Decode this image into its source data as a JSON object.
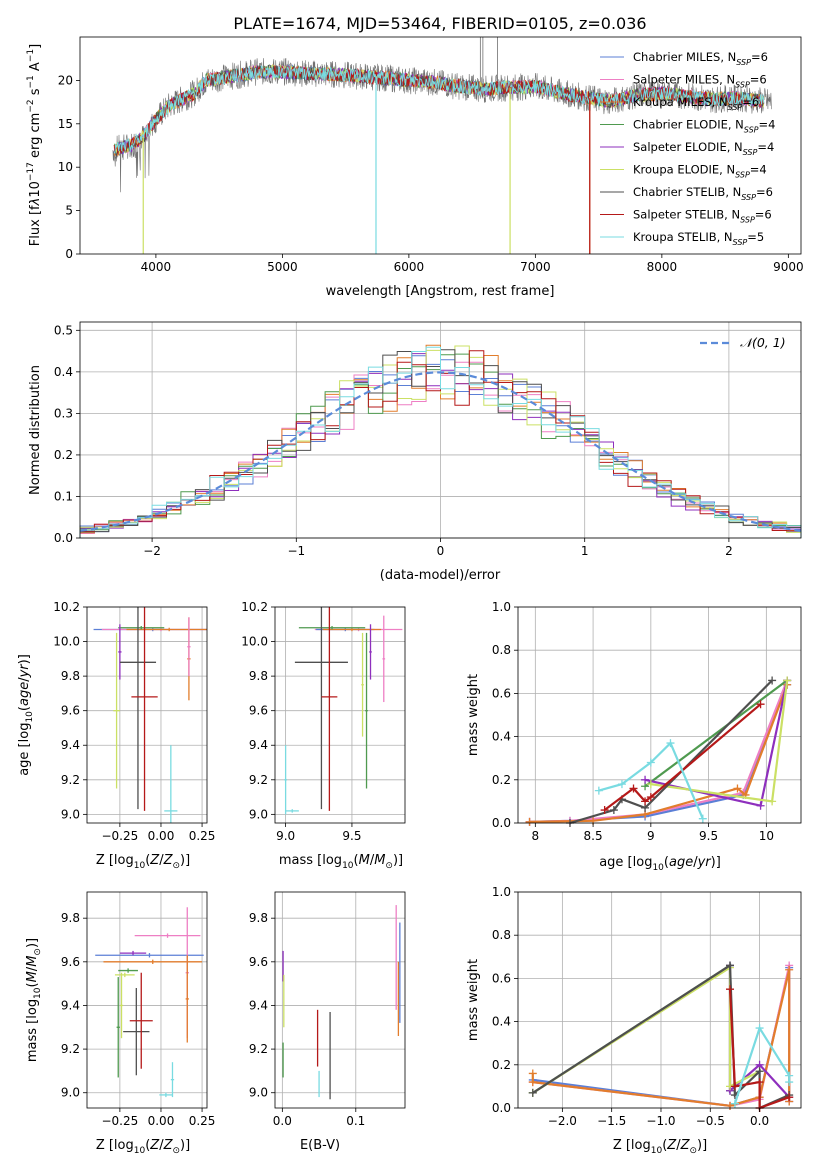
{
  "colors": {
    "chabrier_miles": "#5b7fd6",
    "salpeter_miles": "#ee7fc4",
    "kroupa_miles": "#e27d2c",
    "chabrier_elodie": "#4f9a4f",
    "salpeter_elodie": "#8e2fbd",
    "kroupa_elodie": "#cbe064",
    "chabrier_stelib": "#4f4f4f",
    "salpeter_stelib": "#b51919",
    "kroupa_stelib": "#79dbe1"
  },
  "chart_data": [
    {
      "id": "spectrum",
      "type": "line",
      "title": "PLATE=1674, MJD=53464, FIBERID=0105, z=0.036",
      "xlabel": "wavelength [Angstrom, rest frame]",
      "ylabel": "Flux [fλ10−17 erg cm−2 s−1 A−1]",
      "xlim": [
        3400,
        9100
      ],
      "ylim": [
        0,
        25
      ],
      "xticks": [
        4000,
        5000,
        6000,
        7000,
        8000,
        9000
      ],
      "yticks": [
        0,
        5,
        10,
        15,
        20
      ],
      "legend_position": "top-right",
      "legend": [
        {
          "key": "chabrier_miles",
          "text": "Chabrier MILES, N",
          "sub": "SSP",
          "suffix": "=6"
        },
        {
          "key": "salpeter_miles",
          "text": "Salpeter MILES, N",
          "sub": "SSP",
          "suffix": "=6"
        },
        {
          "key": "kroupa_miles",
          "text": "Kroupa MILES, N",
          "sub": "SSP",
          "suffix": "=6"
        },
        {
          "key": "chabrier_elodie",
          "text": "Chabrier ELODIE, N",
          "sub": "SSP",
          "suffix": "=4"
        },
        {
          "key": "salpeter_elodie",
          "text": "Salpeter ELODIE, N",
          "sub": "SSP",
          "suffix": "=4"
        },
        {
          "key": "kroupa_elodie",
          "text": "Kroupa ELODIE, N",
          "sub": "SSP",
          "suffix": "=4"
        },
        {
          "key": "chabrier_stelib",
          "text": "Chabrier STELIB, N",
          "sub": "SSP",
          "suffix": "=6"
        },
        {
          "key": "salpeter_stelib",
          "text": "Salpeter STELIB, N",
          "sub": "SSP",
          "suffix": "=6"
        },
        {
          "key": "kroupa_stelib",
          "text": "Kroupa STELIB, N",
          "sub": "SSP",
          "suffix": "=5"
        }
      ],
      "data_color": "#707070",
      "continuum": {
        "x": [
          3660,
          3800,
          3900,
          4000,
          4100,
          4200,
          4300,
          4400,
          4600,
          4800,
          5000,
          5200,
          5400,
          5600,
          5800,
          6000,
          6200,
          6400,
          6600,
          6800,
          7000,
          7200,
          7400,
          7600,
          7800,
          8000,
          8200,
          8400,
          8600,
          8800,
          8870
        ],
        "y": [
          12.0,
          12.5,
          13.5,
          15.5,
          17.0,
          17.8,
          18.5,
          20.0,
          20.5,
          21.0,
          21.0,
          20.8,
          20.7,
          20.5,
          20.3,
          20.0,
          19.8,
          19.3,
          19.0,
          19.2,
          19.3,
          18.6,
          18.0,
          17.6,
          18.3,
          18.5,
          18.2,
          17.8,
          18.0,
          17.6,
          17.5
        ]
      },
      "model_dropouts": [
        {
          "key": "kroupa_elodie",
          "x": 3900
        },
        {
          "key": "kroupa_stelib",
          "x": 5740
        },
        {
          "key": "kroupa_elodie",
          "x": 6800
        },
        {
          "key": "kroupa_miles",
          "x": 7430
        },
        {
          "key": "salpeter_stelib",
          "x": 7430
        }
      ]
    },
    {
      "id": "residuals",
      "type": "histogram",
      "xlabel": "(data-model)/error",
      "ylabel": "Normed distribution",
      "xlim": [
        -2.5,
        2.5
      ],
      "ylim": [
        0,
        0.52
      ],
      "xticks": [
        -2,
        -1,
        0,
        1,
        2
      ],
      "xticklabels": [
        "−2",
        "−1",
        "0",
        "1",
        "2"
      ],
      "yticks": [
        0.0,
        0.1,
        0.2,
        0.3,
        0.4,
        0.5
      ],
      "legend_position": "top-right",
      "gaussian_label": "𝒩(0, 1)",
      "gaussian_color": "#5b8bd9",
      "bin_edges": [
        -2.5,
        -2.4,
        -2.3,
        -2.2,
        -2.1,
        -2.0,
        -1.9,
        -1.8,
        -1.7,
        -1.6,
        -1.5,
        -1.4,
        -1.3,
        -1.2,
        -1.1,
        -1.0,
        -0.9,
        -0.8,
        -0.7,
        -0.6,
        -0.5,
        -0.4,
        -0.3,
        -0.2,
        -0.1,
        0.0,
        0.1,
        0.2,
        0.3,
        0.4,
        0.5,
        0.6,
        0.7,
        0.8,
        0.9,
        1.0,
        1.1,
        1.2,
        1.3,
        1.4,
        1.5,
        1.6,
        1.7,
        1.8,
        1.9,
        2.0,
        2.1,
        2.2,
        2.3,
        2.4,
        2.5
      ],
      "spread": 0.045
    },
    {
      "id": "age_vs_z",
      "type": "scatter",
      "xlabel": "Z [log10(Z/Z⊙)]",
      "ylabel": "age  [log10(age/yr)]",
      "xlim": [
        -0.45,
        0.28
      ],
      "ylim": [
        8.95,
        10.2
      ],
      "xticks": [
        -0.25,
        0.0,
        0.25
      ],
      "xticklabels": [
        "−0.25",
        "0.00",
        "0.25"
      ],
      "yticks": [
        9.0,
        9.2,
        9.4,
        9.6,
        9.8,
        10.0,
        10.2
      ],
      "points": [
        {
          "key": "chabrier_miles",
          "x": -0.05,
          "xerr": 0.36,
          "y": 10.07,
          "yerr": 0.01
        },
        {
          "key": "salpeter_miles",
          "x": 0.0,
          "xerr": 0.36,
          "y": 10.07,
          "yerr": 0.01
        },
        {
          "key": "kroupa_miles",
          "x": 0.05,
          "xerr": 0.26,
          "y": 10.07,
          "yerr": 0.01
        },
        {
          "key": "chabrier_elodie",
          "x": -0.12,
          "xerr": 0.14,
          "y": 10.08,
          "yerr": 0.01
        },
        {
          "key": "salpeter_elodie",
          "x": -0.25,
          "xerr": 0.01,
          "y": 9.94,
          "yerr": 0.16
        },
        {
          "key": "kroupa_elodie",
          "x": -0.27,
          "xerr": 0.02,
          "y": 9.6,
          "yerr": 0.45
        },
        {
          "key": "chabrier_stelib",
          "x": -0.14,
          "xerr": 0.11,
          "y": 9.88,
          "yerr": 0.85
        },
        {
          "key": "salpeter_stelib",
          "x": -0.1,
          "xerr": 0.08,
          "y": 9.68,
          "yerr": 0.66
        },
        {
          "key": "kroupa_stelib",
          "x": 0.06,
          "xerr": 0.04,
          "y": 9.02,
          "yerr": 0.38
        },
        {
          "key": "kroupa_miles",
          "x": 0.17,
          "xerr": 0.01,
          "y": 9.9,
          "yerr": 0.24
        },
        {
          "key": "salpeter_miles",
          "x": 0.17,
          "xerr": 0.01,
          "y": 9.97,
          "yerr": 0.17
        }
      ]
    },
    {
      "id": "age_vs_mass",
      "type": "scatter",
      "xlabel": "mass [log10(M/M⊙)]",
      "xlim": [
        8.92,
        9.9
      ],
      "ylim": [
        8.95,
        10.2
      ],
      "xticks": [
        9.0,
        9.5
      ],
      "xticklabels": [
        "9.0",
        "9.5"
      ],
      "yticks": [
        9.0,
        9.2,
        9.4,
        9.6,
        9.8,
        10.0,
        10.2
      ],
      "points": [
        {
          "key": "salpeter_miles",
          "x": 9.55,
          "xerr": 0.33,
          "y": 10.07,
          "yerr": 0.01
        },
        {
          "key": "chabrier_miles",
          "x": 9.45,
          "xerr": 0.22,
          "y": 10.07,
          "yerr": 0.01
        },
        {
          "key": "kroupa_miles",
          "x": 9.5,
          "xerr": 0.22,
          "y": 10.07,
          "yerr": 0.01
        },
        {
          "key": "chabrier_elodie",
          "x": 9.35,
          "xerr": 0.25,
          "y": 10.08,
          "yerr": 0.01
        },
        {
          "key": "salpeter_elodie",
          "x": 9.64,
          "xerr": 0.01,
          "y": 9.94,
          "yerr": 0.16
        },
        {
          "key": "kroupa_elodie",
          "x": 9.58,
          "xerr": 0.01,
          "y": 9.75,
          "yerr": 0.3
        },
        {
          "key": "chabrier_stelib",
          "x": 9.27,
          "xerr": 0.2,
          "y": 9.88,
          "yerr": 0.85
        },
        {
          "key": "salpeter_stelib",
          "x": 9.33,
          "xerr": 0.06,
          "y": 9.68,
          "yerr": 0.66
        },
        {
          "key": "kroupa_stelib",
          "x": 9.0,
          "xerr": 0.01,
          "y": 9.2,
          "yerr": 0.2
        },
        {
          "key": "kroupa_stelib",
          "x": 9.05,
          "xerr": 0.05,
          "y": 9.02,
          "yerr": 0.01
        },
        {
          "key": "salpeter_miles",
          "x": 9.74,
          "xerr": 0.01,
          "y": 9.9,
          "yerr": 0.25
        },
        {
          "key": "chabrier_elodie",
          "x": 9.61,
          "xerr": 0.01,
          "y": 9.6,
          "yerr": 0.45
        }
      ]
    },
    {
      "id": "mass_weight_vs_age",
      "type": "line",
      "xlabel": "age  [log10(age/yr)]",
      "ylabel": "mass weight",
      "xlim": [
        7.85,
        10.3
      ],
      "ylim": [
        0,
        1
      ],
      "xticks": [
        8.0,
        8.5,
        9.0,
        9.5,
        10.0
      ],
      "yticks": [
        0.0,
        0.2,
        0.4,
        0.6,
        0.8,
        1.0
      ],
      "series": [
        {
          "key": "chabrier_miles",
          "x": [
            7.95,
            8.3,
            8.95,
            9.8,
            10.18
          ],
          "y": [
            0.005,
            0.01,
            0.03,
            0.13,
            0.64
          ]
        },
        {
          "key": "salpeter_miles",
          "x": [
            7.95,
            8.3,
            8.95,
            9.8,
            10.18
          ],
          "y": [
            0.005,
            0.01,
            0.04,
            0.14,
            0.66
          ]
        },
        {
          "key": "kroupa_miles",
          "x": [
            7.95,
            8.5,
            8.95,
            9.75,
            9.82,
            10.18
          ],
          "y": [
            0.005,
            0.01,
            0.04,
            0.16,
            0.13,
            0.64
          ]
        },
        {
          "key": "chabrier_elodie",
          "x": [
            8.95,
            10.18
          ],
          "y": [
            0.17,
            0.66
          ]
        },
        {
          "key": "salpeter_elodie",
          "x": [
            8.95,
            9.95,
            10.18
          ],
          "y": [
            0.2,
            0.08,
            0.66
          ]
        },
        {
          "key": "kroupa_elodie",
          "x": [
            9.0,
            10.05,
            10.18
          ],
          "y": [
            0.18,
            0.1,
            0.66
          ]
        },
        {
          "key": "chabrier_stelib",
          "x": [
            8.3,
            8.68,
            8.75,
            8.95,
            10.05
          ],
          "y": [
            0.0,
            0.06,
            0.11,
            0.07,
            0.66
          ]
        },
        {
          "key": "salpeter_stelib",
          "x": [
            8.6,
            8.85,
            8.95,
            9.0,
            9.95
          ],
          "y": [
            0.06,
            0.16,
            0.1,
            0.12,
            0.55
          ]
        },
        {
          "key": "kroupa_stelib",
          "x": [
            8.55,
            8.75,
            9.0,
            9.17,
            9.45
          ],
          "y": [
            0.15,
            0.18,
            0.28,
            0.37,
            0.02
          ]
        }
      ]
    },
    {
      "id": "mass_vs_z",
      "type": "scatter",
      "xlabel": "Z [log10(Z/Z⊙)]",
      "ylabel": "mass [log10(M/M⊙)]",
      "xlim": [
        -0.45,
        0.28
      ],
      "ylim": [
        8.93,
        9.92
      ],
      "xticks": [
        -0.25,
        0.0,
        0.25
      ],
      "xticklabels": [
        "−0.25",
        "0.00",
        "0.25"
      ],
      "yticks": [
        9.0,
        9.2,
        9.4,
        9.6,
        9.8
      ],
      "points": [
        {
          "key": "chabrier_miles",
          "x": -0.07,
          "xerr": 0.33,
          "y": 9.63,
          "yerr": 0.01
        },
        {
          "key": "salpeter_miles",
          "x": 0.04,
          "xerr": 0.2,
          "y": 9.72,
          "yerr": 0.01
        },
        {
          "key": "kroupa_miles",
          "x": -0.05,
          "xerr": 0.3,
          "y": 9.6,
          "yerr": 0.01
        },
        {
          "key": "chabrier_elodie",
          "x": -0.2,
          "xerr": 0.06,
          "y": 9.56,
          "yerr": 0.01
        },
        {
          "key": "salpeter_elodie",
          "x": -0.17,
          "xerr": 0.08,
          "y": 9.64,
          "yerr": 0.01
        },
        {
          "key": "kroupa_elodie",
          "x": -0.22,
          "xerr": 0.06,
          "y": 9.54,
          "yerr": 0.01
        },
        {
          "key": "chabrier_stelib",
          "x": -0.15,
          "xerr": 0.08,
          "y": 9.28,
          "yerr": 0.2
        },
        {
          "key": "salpeter_stelib",
          "x": -0.12,
          "xerr": 0.07,
          "y": 9.33,
          "yerr": 0.22
        },
        {
          "key": "kroupa_stelib",
          "x": 0.03,
          "xerr": 0.04,
          "y": 8.99,
          "yerr": 0.01
        },
        {
          "key": "kroupa_stelib",
          "x": 0.07,
          "xerr": 0.01,
          "y": 9.06,
          "yerr": 0.08
        },
        {
          "key": "chabrier_elodie",
          "x": -0.26,
          "xerr": 0.01,
          "y": 9.3,
          "yerr": 0.23
        },
        {
          "key": "kroupa_elodie",
          "x": -0.24,
          "xerr": 0.01,
          "y": 9.4,
          "yerr": 0.15
        },
        {
          "key": "salpeter_miles",
          "x": 0.16,
          "xerr": 0.01,
          "y": 9.55,
          "yerr": 0.3
        },
        {
          "key": "kroupa_miles",
          "x": 0.16,
          "xerr": 0.01,
          "y": 9.43,
          "yerr": 0.2
        }
      ]
    },
    {
      "id": "mass_vs_ebv",
      "type": "scatter",
      "xlabel": "E(B-V)",
      "xlim": [
        -0.01,
        0.167
      ],
      "ylim": [
        8.93,
        9.92
      ],
      "xticks": [
        0.0,
        0.1
      ],
      "xticklabels": [
        "0.0",
        "0.1"
      ],
      "yticks": [
        9.0,
        9.2,
        9.4,
        9.6,
        9.8
      ],
      "points": [
        {
          "key": "salpeter_elodie",
          "x": 0.001,
          "y": 9.58,
          "yerr": 0.07
        },
        {
          "key": "kroupa_elodie",
          "x": 0.002,
          "y": 9.42,
          "yerr": 0.12
        },
        {
          "key": "chabrier_elodie",
          "x": 0.001,
          "y": 9.15,
          "yerr": 0.08
        },
        {
          "key": "salpeter_stelib",
          "x": 0.048,
          "y": 9.25,
          "yerr": 0.13
        },
        {
          "key": "kroupa_stelib",
          "x": 0.05,
          "y": 9.04,
          "yerr": 0.06
        },
        {
          "key": "chabrier_stelib",
          "x": 0.065,
          "y": 9.17,
          "yerr": 0.2
        },
        {
          "key": "salpeter_miles",
          "x": 0.155,
          "y": 9.62,
          "yerr": 0.24
        },
        {
          "key": "chabrier_miles",
          "x": 0.16,
          "y": 9.55,
          "yerr": 0.23
        },
        {
          "key": "kroupa_miles",
          "x": 0.158,
          "y": 9.43,
          "yerr": 0.17
        }
      ]
    },
    {
      "id": "mass_weight_vs_z",
      "type": "line",
      "xlabel": "Z [log10(Z/Z⊙)]",
      "ylabel": "mass weight",
      "xlim": [
        -2.45,
        0.42
      ],
      "ylim": [
        0,
        1
      ],
      "xticks": [
        -2.0,
        -1.5,
        -1.0,
        -0.5,
        0.0
      ],
      "xticklabels": [
        "−2.0",
        "−1.5",
        "−1.0",
        "−0.5",
        "0.0"
      ],
      "yticks": [
        0.0,
        0.2,
        0.4,
        0.6,
        0.8,
        1.0
      ],
      "series": [
        {
          "key": "chabrier_miles",
          "x": [
            -2.3,
            -0.3,
            0.0,
            0.3,
            0.3
          ],
          "y": [
            0.13,
            0.01,
            0.05,
            0.65,
            0.03
          ]
        },
        {
          "key": "salpeter_miles",
          "x": [
            -2.3,
            -0.3,
            0.0,
            0.3,
            0.3
          ],
          "y": [
            0.12,
            0.01,
            0.04,
            0.66,
            0.03
          ]
        },
        {
          "key": "kroupa_miles",
          "x": [
            -2.3,
            -2.3,
            -0.3,
            0.0,
            0.3,
            0.3
          ],
          "y": [
            0.16,
            0.12,
            0.01,
            0.05,
            0.64,
            0.03
          ]
        },
        {
          "key": "chabrier_elodie",
          "x": [
            -2.3,
            -0.3,
            -0.3
          ],
          "y": [
            0.07,
            0.66,
            0.08
          ]
        },
        {
          "key": "salpeter_elodie",
          "x": [
            -0.3,
            -0.3,
            0.0,
            0.3
          ],
          "y": [
            0.66,
            0.08,
            0.2,
            0.05
          ]
        },
        {
          "key": "kroupa_elodie",
          "x": [
            -2.3,
            -0.3,
            -0.3,
            0.0
          ],
          "y": [
            0.07,
            0.65,
            0.1,
            0.17
          ]
        },
        {
          "key": "chabrier_stelib",
          "x": [
            -2.3,
            -0.3,
            -0.25,
            0.0,
            0.0,
            0.3
          ],
          "y": [
            0.07,
            0.66,
            0.06,
            0.17,
            0.0,
            0.06
          ]
        },
        {
          "key": "salpeter_stelib",
          "x": [
            -0.3,
            -0.25,
            0.0,
            0.0,
            0.3
          ],
          "y": [
            0.55,
            0.1,
            0.12,
            0.0,
            0.05
          ]
        },
        {
          "key": "kroupa_stelib",
          "x": [
            -0.25,
            0.0,
            0.3,
            0.3
          ],
          "y": [
            0.02,
            0.37,
            0.15,
            0.12
          ]
        }
      ]
    }
  ]
}
